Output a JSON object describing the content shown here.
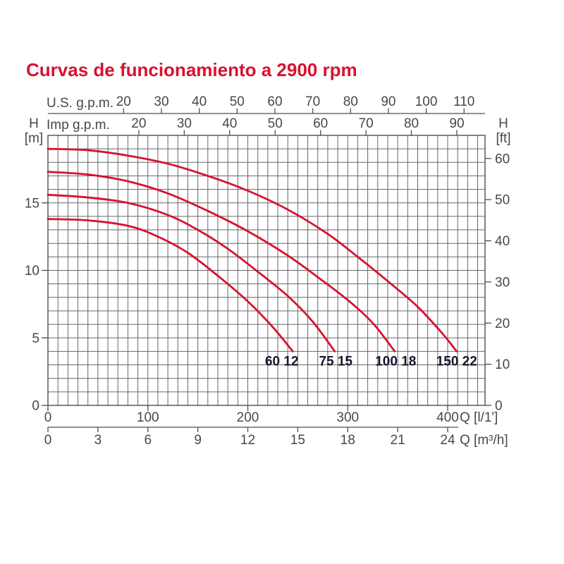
{
  "title": "Curvas de funcionamiento a 2900 rpm",
  "colors": {
    "title": "#d9112f",
    "curve": "#d9112f",
    "grid": "#64676b",
    "frame": "#4c4f52",
    "axis_text": "#45484b",
    "curve_label": "#16162e",
    "background": "#ffffff"
  },
  "chart_data": {
    "type": "line",
    "title": "Curvas de funcionamiento a 2900 rpm",
    "x_axes": {
      "us_gpm": {
        "label": "U.S. g.p.m.",
        "ticks": [
          20,
          30,
          40,
          50,
          60,
          70,
          80,
          90,
          100,
          110
        ]
      },
      "imp_gpm": {
        "label": "Imp g.p.m.",
        "ticks": [
          20,
          30,
          40,
          50,
          60,
          70,
          80,
          90
        ]
      },
      "l_per_min": {
        "label": "Q [l/1']",
        "ticks": [
          0,
          100,
          200,
          300,
          400
        ],
        "grid_step": 10,
        "grid_max": 430
      },
      "m3_per_h": {
        "label": "Q [m³/h]",
        "ticks": [
          0,
          3,
          6,
          9,
          12,
          15,
          18,
          21,
          24
        ]
      }
    },
    "y_axes": {
      "left": {
        "label": "H",
        "unit": "[m]",
        "ticks": [
          0,
          5,
          10,
          15
        ],
        "range": [
          0,
          20
        ],
        "grid_step": 1
      },
      "right": {
        "label": "H",
        "unit": "[ft]",
        "ticks": [
          0,
          10,
          20,
          30,
          40,
          50,
          60
        ]
      }
    },
    "legend_position": "labels-at-curve-ends",
    "grid": true,
    "series": [
      {
        "name": "60 12",
        "label_q": 234,
        "label_h": 2.95,
        "points": [
          [
            0,
            13.8
          ],
          [
            40,
            13.7
          ],
          [
            80,
            13.3
          ],
          [
            110,
            12.5
          ],
          [
            140,
            11.3
          ],
          [
            170,
            9.6
          ],
          [
            200,
            7.7
          ],
          [
            225,
            5.8
          ],
          [
            245,
            4.0
          ]
        ]
      },
      {
        "name": "75 15",
        "label_q": 288,
        "label_h": 2.95,
        "points": [
          [
            0,
            15.6
          ],
          [
            40,
            15.4
          ],
          [
            80,
            15.0
          ],
          [
            120,
            14.1
          ],
          [
            150,
            13.0
          ],
          [
            180,
            11.6
          ],
          [
            210,
            9.9
          ],
          [
            240,
            8.1
          ],
          [
            265,
            6.2
          ],
          [
            287,
            4.0
          ]
        ]
      },
      {
        "name": "100 18",
        "label_q": 348,
        "label_h": 2.95,
        "points": [
          [
            0,
            17.3
          ],
          [
            40,
            17.1
          ],
          [
            80,
            16.6
          ],
          [
            120,
            15.7
          ],
          [
            160,
            14.4
          ],
          [
            200,
            12.9
          ],
          [
            240,
            11.1
          ],
          [
            270,
            9.5
          ],
          [
            300,
            7.8
          ],
          [
            325,
            6.1
          ],
          [
            347,
            4.0
          ]
        ]
      },
      {
        "name": "150 22",
        "label_q": 409,
        "label_h": 2.95,
        "points": [
          [
            0,
            19.0
          ],
          [
            40,
            18.9
          ],
          [
            80,
            18.5
          ],
          [
            120,
            17.9
          ],
          [
            160,
            17.0
          ],
          [
            200,
            15.9
          ],
          [
            240,
            14.5
          ],
          [
            280,
            12.7
          ],
          [
            310,
            11.0
          ],
          [
            340,
            9.2
          ],
          [
            370,
            7.3
          ],
          [
            395,
            5.3
          ],
          [
            409,
            4.0
          ]
        ]
      }
    ]
  }
}
